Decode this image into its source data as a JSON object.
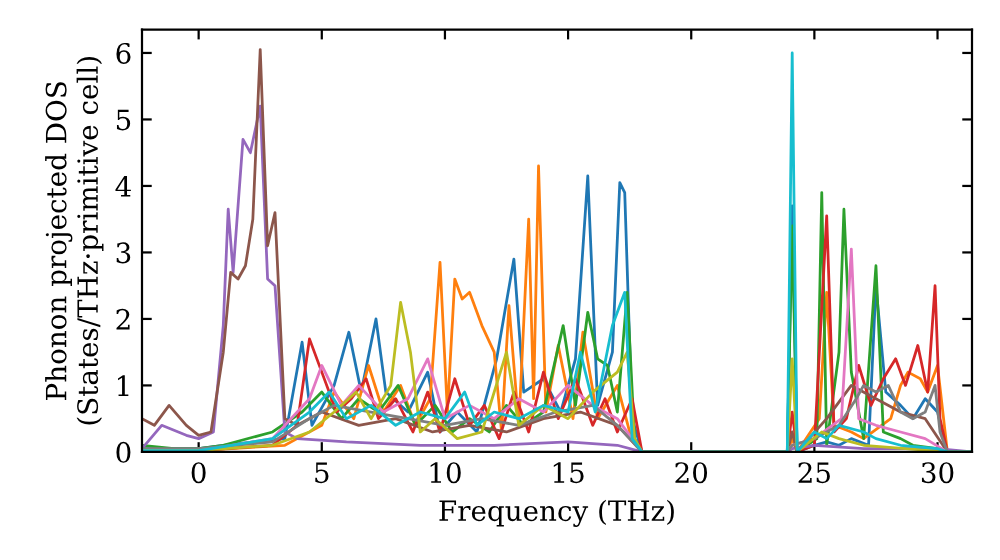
{
  "chart_data": {
    "type": "line",
    "xlabel": "Frequency (THz)",
    "ylabel": "Phonon projected DOS\n(States/THz·primitive cell)",
    "xlim": [
      -2.3,
      31.4
    ],
    "ylim": [
      0,
      6.35
    ],
    "xticks": [
      0,
      5,
      10,
      15,
      20,
      25,
      30
    ],
    "yticks": [
      0,
      1,
      2,
      3,
      4,
      5,
      6
    ],
    "grid": false,
    "legend": false,
    "line_style": "solid",
    "series": [
      {
        "color": "#1f77b4",
        "x": [
          -2.3,
          0,
          1,
          3.5,
          4.2,
          4.6,
          5.5,
          6.1,
          6.6,
          7.2,
          7.6,
          8.5,
          9.3,
          9.8,
          10.5,
          11.3,
          12.1,
          12.8,
          13.2,
          14.0,
          14.7,
          15.3,
          15.8,
          16.2,
          16.8,
          17.1,
          17.3,
          17.6,
          18,
          23.9,
          24.1,
          24.3,
          25,
          25.5,
          26,
          26.5,
          27.2,
          27.5,
          27.9,
          28.5,
          29,
          29.5,
          30,
          30.4,
          31.4
        ],
        "values": [
          0.05,
          0.05,
          0.1,
          0.2,
          1.65,
          0.4,
          1.0,
          1.8,
          0.9,
          2.0,
          0.9,
          0.6,
          1.2,
          0.3,
          0.6,
          0.3,
          1.4,
          2.9,
          0.9,
          1.1,
          0.6,
          1.4,
          4.15,
          0.7,
          1.5,
          4.05,
          3.9,
          0.5,
          0,
          0,
          3.7,
          0,
          0.1,
          0.15,
          0.1,
          0.2,
          0.1,
          2.5,
          0.9,
          0.7,
          0.5,
          0.8,
          0.6,
          0,
          0
        ]
      },
      {
        "color": "#ff7f0e",
        "x": [
          -2.3,
          0,
          3.5,
          4,
          5,
          5.5,
          6.3,
          6.9,
          7.5,
          8.2,
          8.8,
          9.4,
          9.8,
          10.1,
          10.4,
          10.7,
          11,
          11.5,
          12,
          12.3,
          12.6,
          13.0,
          13.4,
          13.6,
          13.8,
          14.1,
          14.6,
          15.2,
          15.6,
          16.2,
          17,
          17.5,
          18,
          23.9,
          24.1,
          24.3,
          25.2,
          25.5,
          25.8,
          26.5,
          27,
          28.1,
          28.5,
          28.8,
          29.3,
          29.6,
          30,
          30.4,
          31.4
        ],
        "values": [
          0.02,
          0.02,
          0.1,
          0.2,
          0.4,
          0.9,
          0.5,
          1.3,
          0.6,
          1.0,
          0.4,
          0.8,
          2.85,
          0.6,
          2.6,
          2.3,
          2.4,
          1.9,
          1.5,
          0.3,
          2.2,
          0.4,
          3.5,
          0.8,
          4.3,
          0.6,
          1.6,
          0.5,
          1.8,
          0.5,
          1.0,
          0.3,
          0,
          0,
          0.2,
          0,
          0.5,
          2.4,
          0.4,
          0.3,
          0.2,
          0.5,
          1.0,
          1.2,
          1.1,
          0.9,
          1.3,
          0,
          0
        ]
      },
      {
        "color": "#2ca02c",
        "x": [
          -2.3,
          -1,
          0,
          1,
          3,
          4.2,
          5,
          5.8,
          6.5,
          7.3,
          8.1,
          8.8,
          9.6,
          10.3,
          11,
          11.8,
          12.5,
          13.2,
          14,
          14.8,
          15.3,
          15.8,
          16.2,
          16.6,
          17,
          17.4,
          17.7,
          18,
          23.9,
          24.1,
          24.3,
          25.1,
          25.3,
          25.5,
          26,
          26.2,
          26.5,
          27,
          27.5,
          27.8,
          28.5,
          29,
          30,
          30.4,
          31.4
        ],
        "values": [
          0.1,
          0.05,
          0.05,
          0.1,
          0.3,
          0.6,
          0.9,
          0.5,
          0.8,
          0.6,
          1.0,
          0.4,
          0.7,
          0.3,
          0.5,
          0.3,
          0.7,
          0.4,
          0.6,
          1.9,
          0.7,
          2.1,
          1.4,
          1.3,
          0.6,
          2.4,
          0.2,
          0,
          0,
          3.4,
          0,
          0.2,
          3.9,
          0.1,
          1.5,
          3.65,
          1.2,
          0.2,
          2.8,
          0.3,
          0.2,
          0.1,
          0.05,
          0,
          0
        ]
      },
      {
        "color": "#d62728",
        "x": [
          -2.3,
          0,
          3,
          4,
          4.5,
          5,
          5.6,
          6.2,
          6.8,
          7.3,
          8,
          8.7,
          9.3,
          9.8,
          10.4,
          11,
          11.6,
          12.2,
          12.8,
          13.4,
          14,
          14.6,
          15.3,
          16,
          16.5,
          17,
          17.6,
          18,
          23.9,
          24.1,
          24.3,
          25,
          25.5,
          25.8,
          26.3,
          26.8,
          27.3,
          27.8,
          28.3,
          28.7,
          29.2,
          29.6,
          29.9,
          30.1,
          30.4,
          31.4
        ],
        "values": [
          0.02,
          0.02,
          0.1,
          0.4,
          1.7,
          1.2,
          0.6,
          0.8,
          1.1,
          0.5,
          0.8,
          0.3,
          0.9,
          0.3,
          1.1,
          0.4,
          0.7,
          0.2,
          0.9,
          0.3,
          1.2,
          0.5,
          1.1,
          0.4,
          0.8,
          0.3,
          0.8,
          0,
          0,
          0.6,
          0,
          0.1,
          3.55,
          0.3,
          0.5,
          1.3,
          0.7,
          1.1,
          1.4,
          1.0,
          1.6,
          0.9,
          2.5,
          0.5,
          0,
          0
        ]
      },
      {
        "color": "#9467bd",
        "x": [
          -2.3,
          -1.5,
          -0.5,
          0,
          0.6,
          1.0,
          1.2,
          1.4,
          1.8,
          2.1,
          2.5,
          2.8,
          3.1,
          3.5,
          4,
          6,
          9,
          12,
          15,
          17,
          18,
          23.9,
          24.1,
          25,
          27,
          30,
          31.4
        ],
        "values": [
          0.05,
          0.4,
          0.25,
          0.2,
          0.3,
          1.9,
          3.65,
          2.7,
          4.7,
          4.5,
          5.2,
          2.6,
          2.5,
          0.3,
          0.2,
          0.15,
          0.1,
          0.1,
          0.15,
          0.1,
          0,
          0,
          0.05,
          0.1,
          0.05,
          0.05,
          0
        ]
      },
      {
        "color": "#8c564b",
        "x": [
          -2.3,
          -1.8,
          -1.2,
          -0.5,
          0,
          0.5,
          1,
          1.3,
          1.6,
          1.9,
          2.2,
          2.5,
          2.8,
          3.1,
          3.5,
          4,
          5,
          6.5,
          8,
          9.5,
          11,
          12.5,
          14,
          15.5,
          17,
          18,
          23.9,
          24.1,
          24.3,
          25.5,
          26.5,
          27.5,
          28.5,
          29.5,
          30.4,
          31.4
        ],
        "values": [
          0.5,
          0.4,
          0.7,
          0.4,
          0.25,
          0.3,
          1.5,
          2.7,
          2.6,
          2.8,
          3.5,
          6.05,
          3.1,
          3.6,
          0.5,
          0.4,
          0.6,
          0.4,
          0.5,
          0.3,
          0.4,
          0.3,
          0.5,
          0.6,
          0.4,
          0,
          0,
          0.3,
          0,
          0.5,
          1.0,
          0.8,
          0.6,
          0.5,
          0,
          0
        ]
      },
      {
        "color": "#e377c2",
        "x": [
          -2.3,
          0,
          3,
          4.5,
          5,
          5.8,
          6.5,
          7.5,
          8.5,
          9.3,
          10,
          11,
          12,
          13,
          14,
          15,
          16,
          17,
          18,
          23.9,
          24.1,
          25,
          26.1,
          26.5,
          26.8,
          27.5,
          28.5,
          29.5,
          30.4,
          31.4
        ],
        "values": [
          0.02,
          0.02,
          0.2,
          0.8,
          1.3,
          0.7,
          1.0,
          0.6,
          0.8,
          1.4,
          0.5,
          0.7,
          0.5,
          0.8,
          0.6,
          1.0,
          0.7,
          0.5,
          0,
          0,
          0.1,
          0.2,
          0.5,
          3.05,
          0.5,
          0.4,
          0.3,
          0.2,
          0,
          0
        ]
      },
      {
        "color": "#7f7f7f",
        "x": [
          -2.3,
          0,
          3,
          4.5,
          5.5,
          7,
          8.5,
          10,
          11.5,
          13,
          14.5,
          16,
          17,
          18,
          23.9,
          24.1,
          25,
          26,
          26.7,
          27,
          27.5,
          28,
          28.5,
          29,
          29.5,
          29.9,
          30.1,
          30.4,
          31.4
        ],
        "values": [
          0.05,
          0.05,
          0.15,
          0.5,
          0.7,
          0.6,
          0.5,
          0.4,
          0.5,
          0.4,
          0.6,
          0.7,
          0.4,
          0,
          0,
          0.1,
          0.2,
          0.4,
          0.8,
          1.0,
          0.9,
          1.0,
          0.6,
          0.5,
          0.6,
          1.0,
          0.3,
          0,
          0
        ]
      },
      {
        "color": "#bcbd22",
        "x": [
          -2.3,
          0,
          3,
          4.5,
          5.5,
          6.4,
          7,
          7.8,
          8.2,
          8.6,
          9,
          9.6,
          10.5,
          11.5,
          12.5,
          13,
          14,
          15,
          16,
          17,
          17.4,
          17.7,
          18,
          23.9,
          24.1,
          24.3,
          25.3,
          26,
          27,
          30.4,
          31.4
        ],
        "values": [
          0.02,
          0.02,
          0.1,
          0.3,
          0.6,
          0.9,
          0.5,
          1.0,
          2.25,
          1.5,
          0.3,
          0.5,
          0.2,
          0.3,
          1.5,
          0.4,
          0.7,
          0.5,
          0.9,
          1.2,
          1.5,
          0.2,
          0,
          0,
          1.4,
          0,
          0.3,
          0.2,
          0.1,
          0,
          0
        ]
      },
      {
        "color": "#17becf",
        "x": [
          -2.3,
          0,
          3,
          4.5,
          5.3,
          6,
          7,
          8,
          9,
          10,
          10.8,
          11.3,
          12,
          13,
          14,
          15,
          15.5,
          16.1,
          16.8,
          17.3,
          17.6,
          18,
          23.9,
          24.1,
          24.3,
          25,
          25.5,
          26,
          27,
          27.5,
          28.5,
          30,
          30.4,
          31.4
        ],
        "values": [
          0.02,
          0.02,
          0.2,
          0.6,
          0.9,
          0.5,
          0.7,
          0.4,
          0.6,
          0.5,
          0.9,
          0.4,
          0.6,
          0.5,
          0.7,
          0.6,
          1.5,
          0.6,
          1.9,
          2.4,
          0.2,
          0,
          0,
          6.0,
          0,
          0.3,
          0.2,
          0.4,
          0.3,
          0.2,
          0.1,
          0.05,
          0,
          0
        ]
      }
    ]
  }
}
